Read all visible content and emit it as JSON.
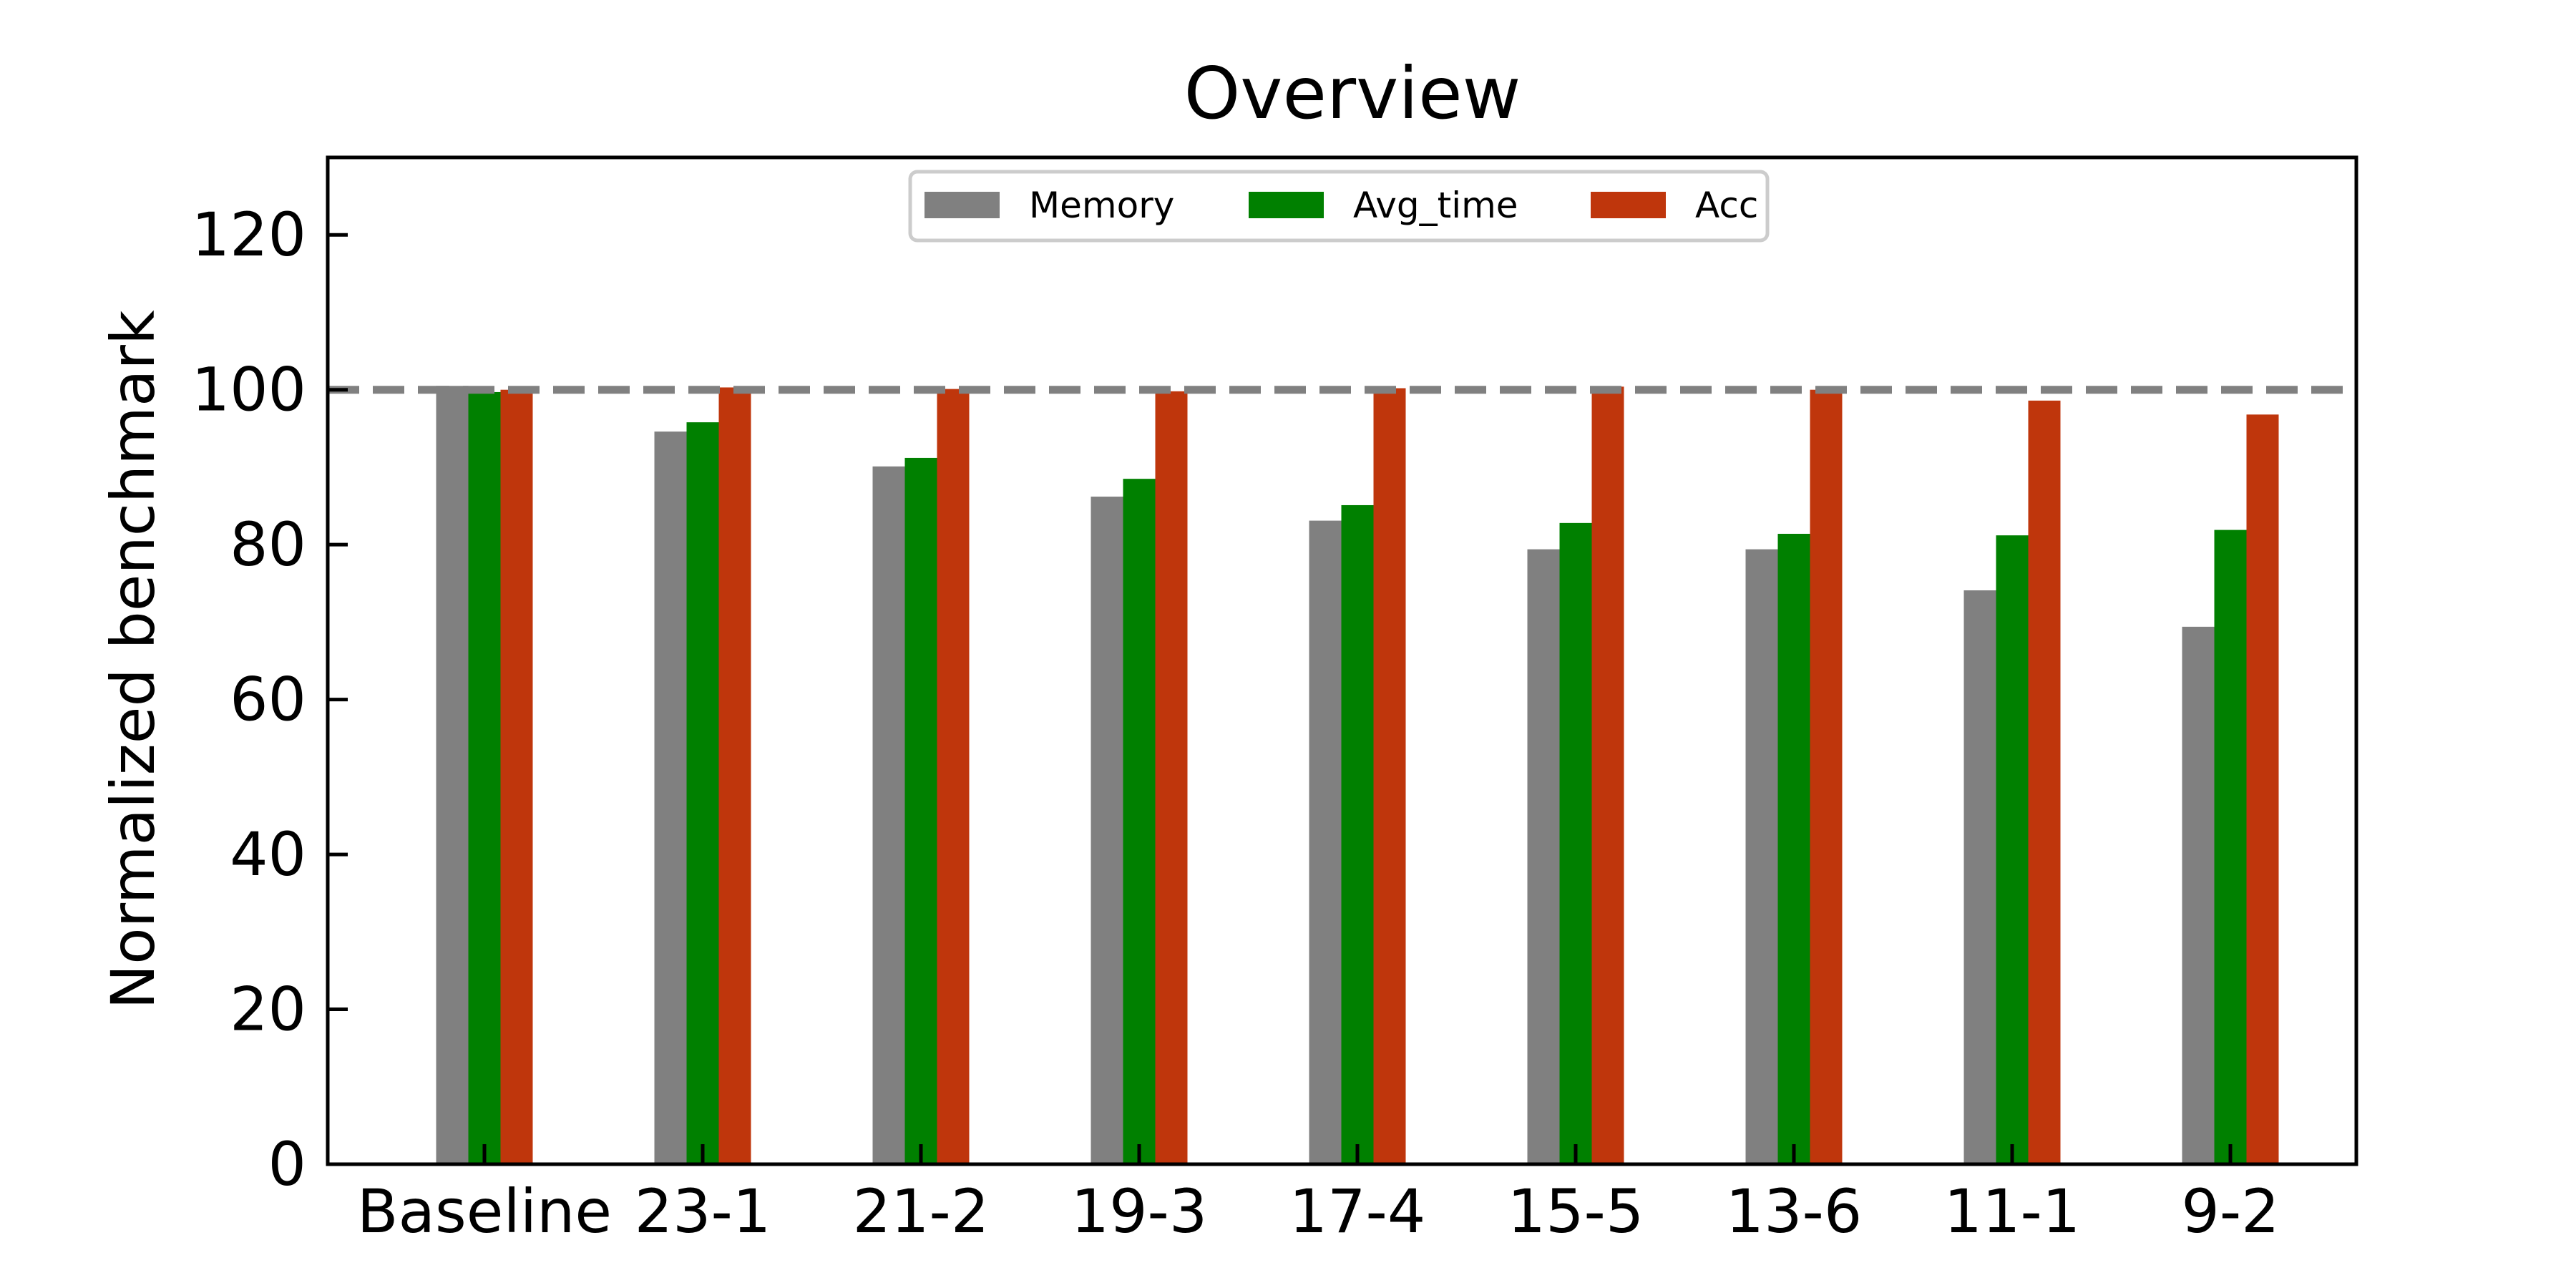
{
  "chart_data": {
    "type": "bar",
    "title": "Overview",
    "xlabel": "",
    "ylabel": "Normalized benchmark",
    "ylim": [
      0,
      130
    ],
    "yticks": [
      0,
      20,
      40,
      60,
      80,
      100,
      120
    ],
    "categories": [
      "Baseline",
      "23-1",
      "21-2",
      "19-3",
      "17-4",
      "15-5",
      "13-6",
      "11-1",
      "9-2"
    ],
    "series": [
      {
        "name": "Memory",
        "color": "#808080",
        "values": [
          100.5,
          94.6,
          90.1,
          86.2,
          83.1,
          79.4,
          79.4,
          74.1,
          69.4
        ]
      },
      {
        "name": "Avg_time",
        "color": "#008000",
        "values": [
          99.7,
          95.8,
          91.2,
          88.5,
          85.1,
          82.8,
          81.4,
          81.2,
          81.9
        ]
      },
      {
        "name": "Acc",
        "color": "#bf360c",
        "values": [
          100.0,
          100.3,
          100.1,
          99.8,
          100.2,
          100.4,
          100.0,
          98.6,
          96.8
        ]
      }
    ],
    "reference_line": {
      "value": 100,
      "style": "dashed",
      "color": "#808080"
    },
    "legend": {
      "placement": "top-center",
      "columns": 3
    },
    "grid": false
  }
}
